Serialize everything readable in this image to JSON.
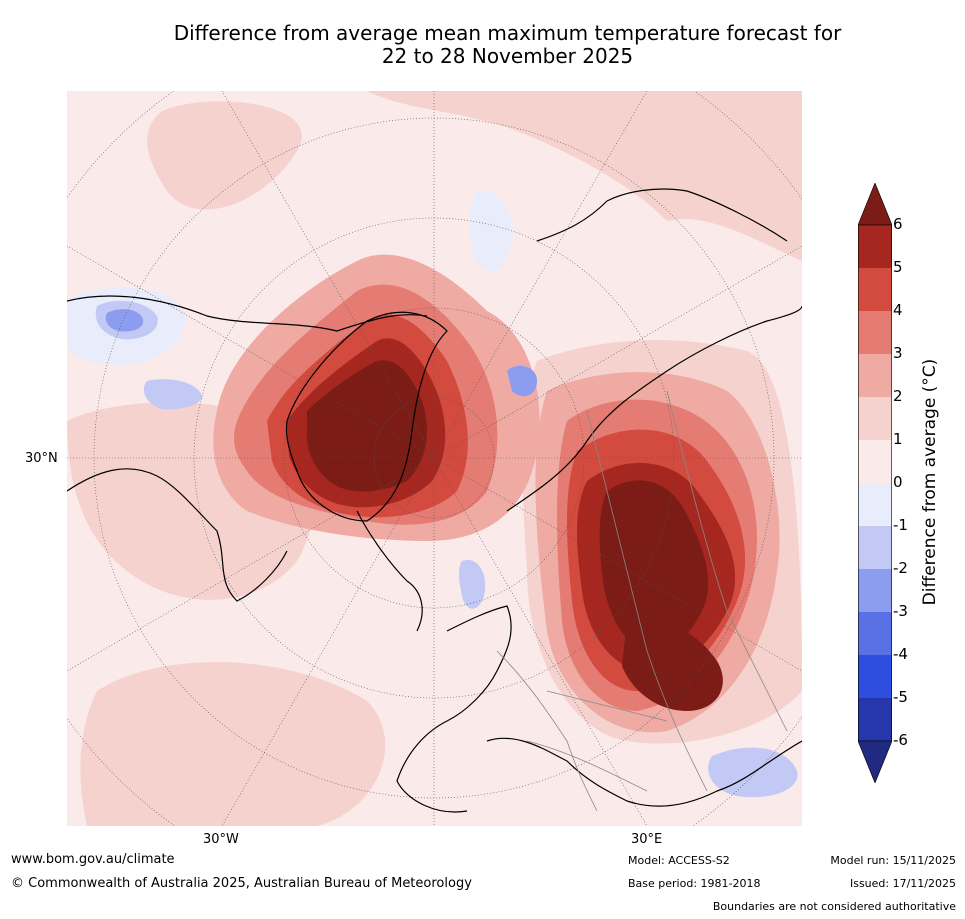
{
  "title_line1": "Difference from average mean maximum temperature forecast for",
  "title_line2": "22 to 28 November 2025",
  "axis": {
    "lat_left": "30°N",
    "lon_left": "30°W",
    "lon_right": "30°E"
  },
  "colorbar": {
    "label": "Difference from average (°C)",
    "ticks": [
      "6",
      "5",
      "4",
      "3",
      "2",
      "1",
      "0",
      "-1",
      "-2",
      "-3",
      "-4",
      "-5",
      "-6"
    ],
    "colors": [
      "#7b1d16",
      "#a5271f",
      "#d34a3f",
      "#e57c73",
      "#eeaaa3",
      "#f5d2ce",
      "#fbeaea",
      "#e8ecfb",
      "#c2c9f4",
      "#8c9cee",
      "#5a71e6",
      "#2e4ee0",
      "#2537ab",
      "#1f2a80"
    ]
  },
  "footer": {
    "website": "www.bom.gov.au/climate",
    "copyright": "© Commonwealth of Australia 2025, Australian Bureau of Meteorology",
    "model": "Model: ACCESS-S2",
    "base_period": "Base period: 1981-2018",
    "model_run": "Model run: 15/11/2025",
    "issued": "Issued: 17/11/2025",
    "disclaimer": "Boundaries are not considered authoritative"
  }
}
